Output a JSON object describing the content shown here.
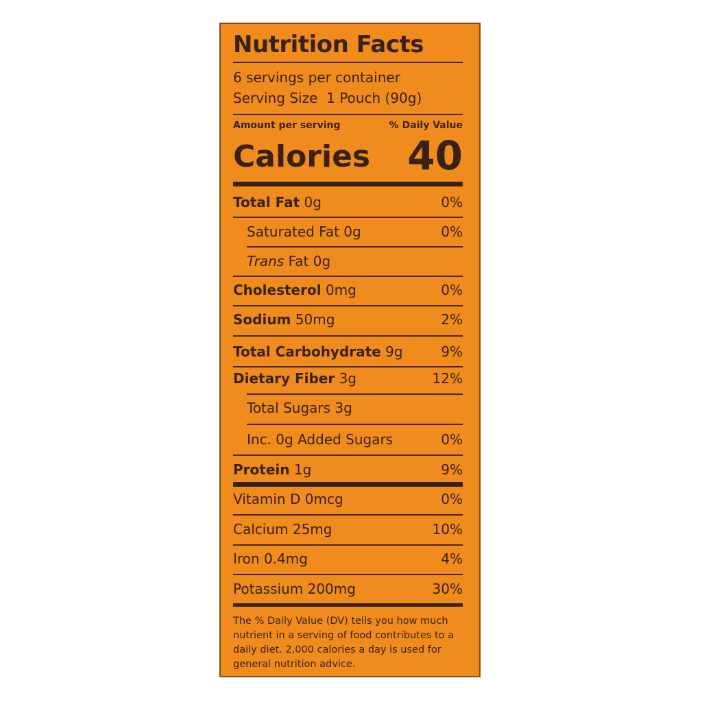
{
  "title": "Nutrition Facts",
  "servings_per_container": "6 servings per container",
  "serving_size_label": "Serving Size",
  "serving_size_value": "1 Pouch (90g)",
  "amount_per_serving": "Amount per serving",
  "daily_value_header": "% Daily Value",
  "calories_label": "Calories",
  "calories_value": "40",
  "nutrients": [
    {
      "name": "Total Fat",
      "amount": "0g",
      "dv": "0%"
    },
    {
      "name": "Saturated Fat",
      "amount": "0g",
      "dv": "0%"
    },
    {
      "name": "Trans",
      "name_suffix": "Fat",
      "amount": "0g",
      "dv": ""
    },
    {
      "name": "Cholesterol",
      "amount": "0mg",
      "dv": "0%"
    },
    {
      "name": "Sodium",
      "amount": "50mg",
      "dv": "2%"
    },
    {
      "name": "Total Carbohydrate",
      "amount": "9g",
      "dv": "9%"
    },
    {
      "name": "Dietary Fiber",
      "amount": "3g",
      "dv": "12%"
    },
    {
      "name": "Total Sugars",
      "amount": "3g",
      "dv": ""
    },
    {
      "name": "Inc. 0g Added Sugars",
      "amount": "",
      "dv": "0%"
    },
    {
      "name": "Protein",
      "amount": "1g",
      "dv": "9%"
    }
  ],
  "vitamins": [
    {
      "name": "Vitamin D",
      "amount": "0mcg",
      "dv": "0%"
    },
    {
      "name": "Calcium",
      "amount": "25mg",
      "dv": "10%"
    },
    {
      "name": "Iron",
      "amount": "0.4mg",
      "dv": "4%"
    },
    {
      "name": "Potassium",
      "amount": "200mg",
      "dv": "30%"
    }
  ],
  "footnote": "The % Daily Value (DV) tells you how much nutrient in a serving of food contributes to a daily diet. 2,000 calories a day is used for general nutrition advice.",
  "colors": {
    "background": "#f08b1d",
    "text": "#3a2117"
  }
}
